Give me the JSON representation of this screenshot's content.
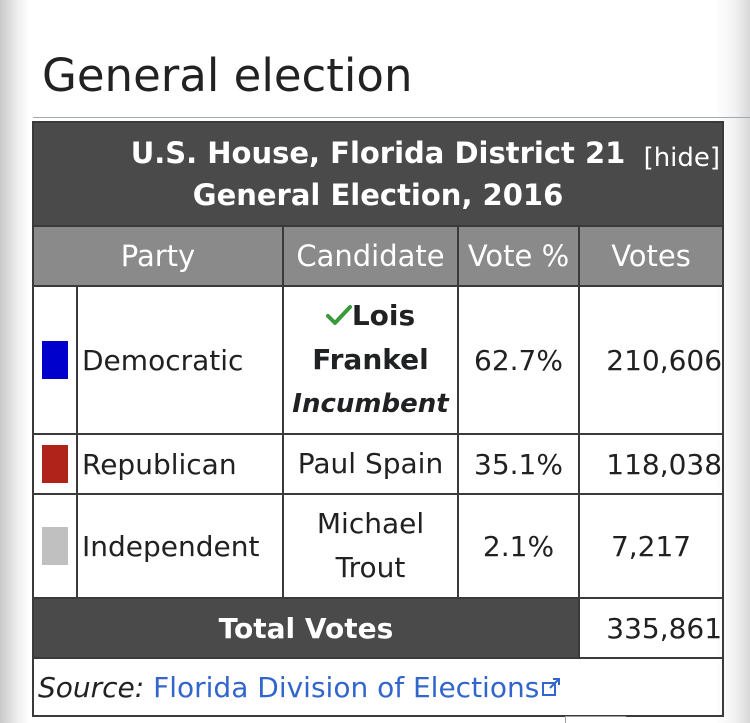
{
  "heading": "General election",
  "table": {
    "title_line1": "U.S. House, Florida District 21",
    "title_line2": "General Election, 2016",
    "hide_label": "[hide]",
    "headers": [
      "Party",
      "Candidate",
      "Vote %",
      "Votes"
    ],
    "rows": [
      {
        "party": "Democratic",
        "party_color": "#0000cc",
        "candidate_line1": "Lois",
        "candidate_line2": "Frankel",
        "candidate_note": "Incumbent",
        "winner": true,
        "vote_pct": "62.7%",
        "votes": "210,606"
      },
      {
        "party": "Republican",
        "party_color": "#b0231b",
        "candidate": "Paul Spain",
        "vote_pct": "35.1%",
        "votes": "118,038"
      },
      {
        "party": "Independent",
        "party_color": "#c0c0c0",
        "candidate_line1": "Michael",
        "candidate_line2": "Trout",
        "vote_pct": "2.1%",
        "votes": "7,217"
      }
    ],
    "total_label": "Total Votes",
    "total_votes": "335,861",
    "source_label": "Source:",
    "source_link": "Florida Division of Elections"
  },
  "colors": {
    "header_dark": "#4a4a4a",
    "header_gray": "#8a8a8a",
    "link": "#3366cc",
    "check": "#3a9a3a"
  },
  "icons": {
    "winner": "check-icon",
    "external_link": "external-link-icon"
  }
}
